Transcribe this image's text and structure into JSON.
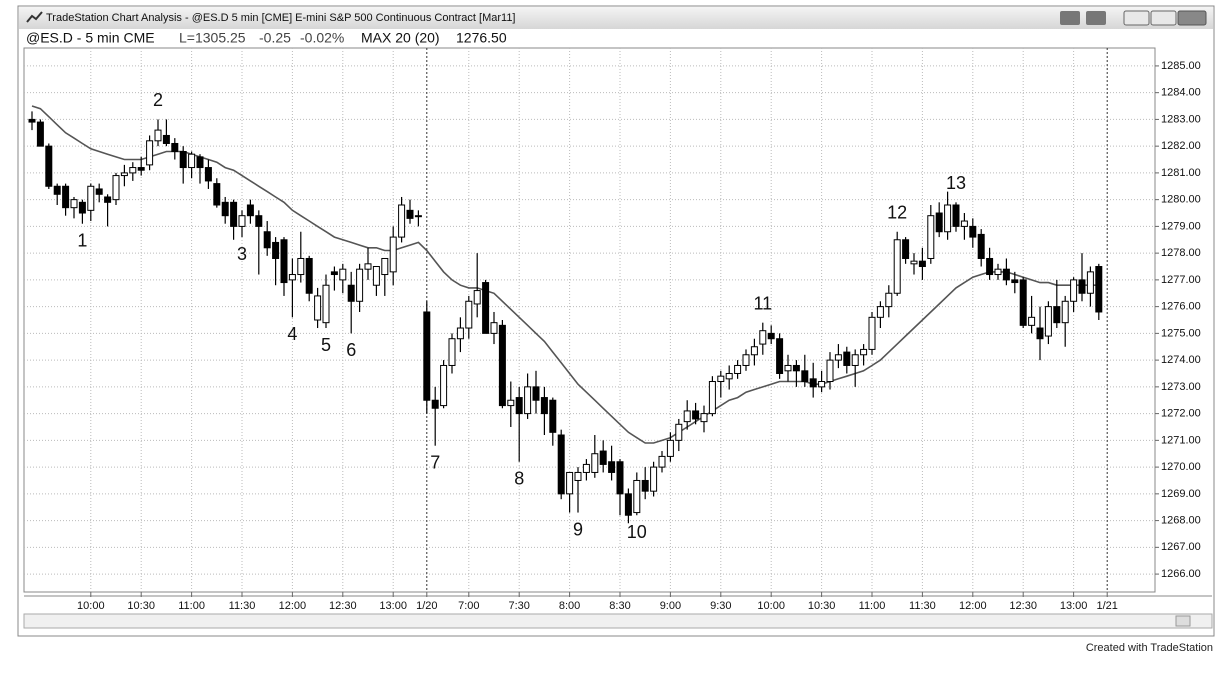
{
  "window": {
    "title": "TradeStation Chart Analysis - @ES.D 5 min [CME] E-mini S&P 500  Continuous Contract [Mar11]"
  },
  "footer": "Created with TradeStation",
  "chart_data": {
    "type": "candlestick",
    "header": {
      "symbol": "@ES.D - 5 min CME",
      "last": "L=1305.25",
      "change": "-0.25",
      "change_pct": "-0.02%",
      "indicator": "MAX 20 (20)",
      "indicator_value": "1276.50"
    },
    "categories": [
      null,
      null,
      null,
      null,
      null,
      null,
      null,
      "10:00",
      null,
      null,
      null,
      null,
      null,
      "10:30",
      null,
      null,
      null,
      null,
      null,
      "11:00",
      null,
      null,
      null,
      null,
      null,
      "11:30",
      null,
      null,
      null,
      null,
      null,
      "12:00",
      null,
      null,
      null,
      null,
      null,
      "12:30",
      null,
      null,
      null,
      null,
      null,
      "13:00",
      null,
      null,
      null,
      "1/20",
      null,
      null,
      null,
      null,
      "7:00",
      null,
      null,
      null,
      null,
      null,
      "7:30",
      null,
      null,
      null,
      null,
      null,
      "8:00",
      null,
      null,
      null,
      null,
      null,
      "8:30",
      null,
      null,
      null,
      null,
      null,
      "9:00",
      null,
      null,
      null,
      null,
      null,
      "9:30",
      null,
      null,
      null,
      null,
      null,
      "10:00",
      null,
      null,
      null,
      null,
      null,
      "10:30",
      null,
      null,
      null,
      null,
      null,
      "11:00",
      null,
      null,
      null,
      null,
      null,
      "11:30",
      null,
      null,
      null,
      null,
      null,
      "12:00",
      null,
      null,
      null,
      null,
      null,
      "12:30",
      null,
      null,
      null,
      null,
      null,
      "13:00",
      null,
      null,
      null,
      "1/21"
    ],
    "open": [
      1283.0,
      1282.9,
      1282.0,
      1280.5,
      1280.5,
      1279.7,
      1279.9,
      1279.6,
      1280.4,
      1280.1,
      1280.0,
      1280.9,
      1281.0,
      1281.2,
      1281.3,
      1282.2,
      1282.4,
      1282.1,
      1281.8,
      1281.2,
      1281.6,
      1281.2,
      1280.6,
      1279.9,
      1279.9,
      1279.0,
      1279.8,
      1279.4,
      1278.8,
      1278.4,
      1278.5,
      1277.0,
      1277.2,
      1277.8,
      1275.5,
      1275.4,
      1277.3,
      1277.0,
      1276.8,
      1276.2,
      1277.4,
      1276.8,
      1277.2,
      1277.3,
      1278.6,
      1279.6,
      1279.4,
      1275.8,
      1272.5,
      1272.3,
      1273.8,
      1274.8,
      1275.2,
      1276.1,
      1276.9,
      1275.0,
      1275.3,
      1272.3,
      1272.6,
      1272.0,
      1273.0,
      1272.6,
      1272.5,
      1271.2,
      1269.0,
      1269.5,
      1269.8,
      1269.8,
      1270.6,
      1270.2,
      1270.2,
      1269.0,
      1268.3,
      1269.5,
      1269.1,
      1270.0,
      1270.4,
      1271.0,
      1271.7,
      1272.1,
      1271.7,
      1272.0,
      1273.2,
      1273.3,
      1273.5,
      1273.8,
      1274.2,
      1274.6,
      1275.0,
      1274.8,
      1273.6,
      1273.8,
      1273.6,
      1273.3,
      1273.0,
      1273.2,
      1274.0,
      1274.3,
      1273.8,
      1274.2,
      1274.4,
      1275.6,
      1276.0,
      1276.5,
      1278.5,
      1277.6,
      1277.7,
      1277.8,
      1279.5,
      1278.8,
      1279.8,
      1279.0,
      1279.0,
      1278.7,
      1277.8,
      1277.2,
      1277.4,
      1277.0,
      1277.0,
      1275.3,
      1275.2,
      1274.9,
      1276.0,
      1275.4,
      1276.2,
      1277.0,
      1276.5,
      1277.5,
      null
    ],
    "high": [
      1283.3,
      1283.0,
      1282.1,
      1280.6,
      1280.6,
      1280.1,
      1280.0,
      1280.6,
      1280.6,
      1280.2,
      1281.0,
      1281.3,
      1281.4,
      1281.6,
      1282.4,
      1283.0,
      1283.0,
      1282.3,
      1282.0,
      1281.8,
      1281.7,
      1281.5,
      1280.8,
      1280.1,
      1280.0,
      1279.6,
      1280.0,
      1279.6,
      1279.2,
      1278.6,
      1278.6,
      1277.8,
      1278.8,
      1277.9,
      1276.7,
      1277.2,
      1277.5,
      1277.6,
      1277.3,
      1277.6,
      1278.2,
      1277.5,
      1277.8,
      1279.0,
      1280.1,
      1280.0,
      1279.6,
      1276.2,
      1273.0,
      1274.0,
      1275.0,
      1275.6,
      1276.4,
      1278.0,
      1277.0,
      1275.8,
      1275.5,
      1273.2,
      1273.0,
      1273.5,
      1273.6,
      1273.0,
      1272.6,
      1271.4,
      1269.8,
      1270.0,
      1270.3,
      1271.2,
      1271.0,
      1270.8,
      1270.3,
      1269.2,
      1269.8,
      1270.0,
      1270.2,
      1270.6,
      1271.3,
      1271.8,
      1272.5,
      1272.4,
      1272.3,
      1273.4,
      1273.6,
      1273.8,
      1274.0,
      1274.4,
      1274.8,
      1275.4,
      1275.3,
      1275.0,
      1274.2,
      1274.0,
      1274.2,
      1273.9,
      1273.6,
      1274.3,
      1274.6,
      1274.5,
      1274.4,
      1274.6,
      1275.8,
      1276.2,
      1276.8,
      1278.8,
      1278.6,
      1278.0,
      1278.2,
      1279.8,
      1279.9,
      1280.3,
      1279.9,
      1279.5,
      1279.3,
      1278.9,
      1278.2,
      1277.6,
      1277.8,
      1277.3,
      1277.1,
      1276.4,
      1276.0,
      1276.2,
      1277.0,
      1276.4,
      1277.1,
      1278.0,
      1277.5,
      1277.6,
      null
    ],
    "low": [
      1282.6,
      1282.0,
      1280.4,
      1279.8,
      1279.4,
      1279.3,
      1279.1,
      1279.2,
      1279.9,
      1279.0,
      1279.8,
      1280.5,
      1280.7,
      1280.9,
      1281.1,
      1282.0,
      1282.0,
      1281.5,
      1280.6,
      1280.8,
      1280.6,
      1280.4,
      1279.7,
      1279.1,
      1278.5,
      1278.6,
      1279.1,
      1277.2,
      1277.9,
      1276.8,
      1276.4,
      1275.6,
      1276.9,
      1276.2,
      1275.2,
      1275.2,
      1276.6,
      1276.5,
      1275.0,
      1275.8,
      1277.0,
      1276.4,
      1276.4,
      1276.8,
      1278.4,
      1279.1,
      1279.0,
      1272.0,
      1270.8,
      1272.2,
      1273.5,
      1274.3,
      1274.8,
      1275.6,
      1275.0,
      1274.6,
      1272.2,
      1271.5,
      1270.2,
      1271.8,
      1272.0,
      1271.2,
      1270.8,
      1268.8,
      1268.3,
      1268.3,
      1269.5,
      1269.6,
      1269.8,
      1269.5,
      1268.2,
      1267.9,
      1268.2,
      1268.8,
      1268.9,
      1269.8,
      1270.2,
      1270.6,
      1271.4,
      1271.6,
      1271.3,
      1271.9,
      1272.6,
      1272.9,
      1273.3,
      1273.6,
      1273.8,
      1274.2,
      1274.6,
      1273.3,
      1273.2,
      1273.0,
      1273.0,
      1272.6,
      1272.8,
      1272.9,
      1273.7,
      1273.5,
      1273.0,
      1273.8,
      1274.2,
      1275.2,
      1275.6,
      1276.4,
      1277.6,
      1277.2,
      1277.0,
      1277.6,
      1278.6,
      1278.5,
      1278.8,
      1278.5,
      1278.2,
      1277.5,
      1277.0,
      1277.0,
      1276.8,
      1276.5,
      1275.2,
      1275.0,
      1274.0,
      1274.6,
      1275.2,
      1274.5,
      1275.8,
      1276.2,
      1276.0,
      1275.5,
      null
    ],
    "close": [
      1282.9,
      1282.0,
      1280.5,
      1280.2,
      1279.7,
      1280.0,
      1279.5,
      1280.5,
      1280.2,
      1279.9,
      1280.9,
      1281.0,
      1281.2,
      1281.1,
      1282.2,
      1282.6,
      1282.1,
      1281.8,
      1281.2,
      1281.7,
      1281.2,
      1280.7,
      1279.8,
      1279.4,
      1279.0,
      1279.4,
      1279.4,
      1279.0,
      1278.2,
      1277.8,
      1276.9,
      1277.2,
      1277.8,
      1276.5,
      1276.4,
      1276.8,
      1277.2,
      1277.4,
      1276.2,
      1277.4,
      1277.6,
      1277.5,
      1277.8,
      1278.6,
      1279.8,
      1279.3,
      1279.4,
      1272.5,
      1272.2,
      1273.8,
      1274.8,
      1275.2,
      1276.2,
      1276.6,
      1275.0,
      1275.4,
      1272.3,
      1272.5,
      1272.0,
      1273.0,
      1272.5,
      1272.0,
      1271.3,
      1269.0,
      1269.8,
      1269.8,
      1270.1,
      1270.5,
      1270.1,
      1269.8,
      1269.0,
      1268.2,
      1269.5,
      1269.1,
      1270.0,
      1270.4,
      1271.0,
      1271.6,
      1272.1,
      1271.8,
      1272.0,
      1273.2,
      1273.4,
      1273.5,
      1273.8,
      1274.2,
      1274.5,
      1275.1,
      1274.8,
      1273.5,
      1273.8,
      1273.6,
      1273.2,
      1273.0,
      1273.2,
      1274.0,
      1274.2,
      1273.8,
      1274.2,
      1274.4,
      1275.6,
      1276.0,
      1276.5,
      1278.5,
      1277.8,
      1277.7,
      1277.5,
      1279.4,
      1278.8,
      1279.8,
      1279.0,
      1279.2,
      1278.6,
      1277.8,
      1277.2,
      1277.4,
      1277.0,
      1276.9,
      1275.3,
      1275.6,
      1274.8,
      1276.0,
      1275.4,
      1276.2,
      1277.0,
      1276.5,
      1277.3,
      1275.8,
      null
    ],
    "ma": {
      "color": "#555555",
      "values": [
        1283.5,
        1283.4,
        1283.1,
        1282.8,
        1282.5,
        1282.3,
        1282.1,
        1281.9,
        1281.8,
        1281.7,
        1281.6,
        1281.5,
        1281.5,
        1281.5,
        1281.6,
        1281.7,
        1281.8,
        1281.8,
        1281.8,
        1281.7,
        1281.6,
        1281.5,
        1281.4,
        1281.2,
        1281.1,
        1280.9,
        1280.7,
        1280.5,
        1280.3,
        1280.1,
        1279.9,
        1279.6,
        1279.4,
        1279.2,
        1279.0,
        1278.8,
        1278.6,
        1278.5,
        1278.4,
        1278.3,
        1278.2,
        1278.2,
        1278.1,
        1278.1,
        1278.2,
        1278.3,
        1278.4,
        1278.1,
        1277.7,
        1277.3,
        1277.0,
        1276.8,
        1276.7,
        1276.7,
        1276.6,
        1276.5,
        1276.2,
        1275.9,
        1275.6,
        1275.3,
        1275.0,
        1274.7,
        1274.3,
        1273.9,
        1273.5,
        1273.1,
        1272.8,
        1272.5,
        1272.2,
        1271.9,
        1271.6,
        1271.3,
        1271.1,
        1270.9,
        1270.9,
        1271.0,
        1271.1,
        1271.3,
        1271.5,
        1271.7,
        1271.9,
        1272.1,
        1272.3,
        1272.5,
        1272.6,
        1272.8,
        1272.9,
        1273.0,
        1273.1,
        1273.2,
        1273.2,
        1273.2,
        1273.2,
        1273.1,
        1273.1,
        1273.2,
        1273.3,
        1273.4,
        1273.5,
        1273.6,
        1273.8,
        1274.0,
        1274.3,
        1274.6,
        1274.9,
        1275.2,
        1275.5,
        1275.8,
        1276.1,
        1276.4,
        1276.7,
        1276.9,
        1277.1,
        1277.2,
        1277.3,
        1277.3,
        1277.3,
        1277.2,
        1277.1,
        1277.0,
        1276.9,
        1276.9,
        1276.8,
        1276.8,
        1276.8,
        1276.8,
        1276.8,
        1276.8,
        null
      ]
    },
    "up_color": "#ffffff",
    "down_color": "#000000",
    "annotations": [
      "1",
      "2",
      "3",
      "4",
      "5",
      "6",
      "7",
      "8",
      "9",
      "10",
      "11",
      "12",
      "13"
    ],
    "ylim": [
      1265.33,
      1285.67
    ],
    "yticks": [
      {
        "value": 1266,
        "label": "1266.00"
      },
      {
        "value": 1267,
        "label": "1267.00"
      },
      {
        "value": 1268,
        "label": "1268.00"
      },
      {
        "value": 1269,
        "label": "1269.00"
      },
      {
        "value": 1270,
        "label": "1270.00"
      },
      {
        "value": 1271,
        "label": "1271.00"
      },
      {
        "value": 1272,
        "label": "1272.00"
      },
      {
        "value": 1273,
        "label": "1273.00"
      },
      {
        "value": 1274,
        "label": "1274.00"
      },
      {
        "value": 1275,
        "label": "1275.00"
      },
      {
        "value": 1276,
        "label": "1276.00"
      },
      {
        "value": 1277,
        "label": "1277.00"
      },
      {
        "value": 1278,
        "label": "1278.00"
      },
      {
        "value": 1279,
        "label": "1279.00"
      },
      {
        "value": 1280,
        "label": "1280.00"
      },
      {
        "value": 1281,
        "label": "1281.00"
      },
      {
        "value": 1282,
        "label": "1282.00"
      },
      {
        "value": 1283,
        "label": "1283.00"
      },
      {
        "value": 1284,
        "label": "1284.00"
      },
      {
        "value": 1285,
        "label": "1285.00"
      }
    ],
    "grid": true
  }
}
